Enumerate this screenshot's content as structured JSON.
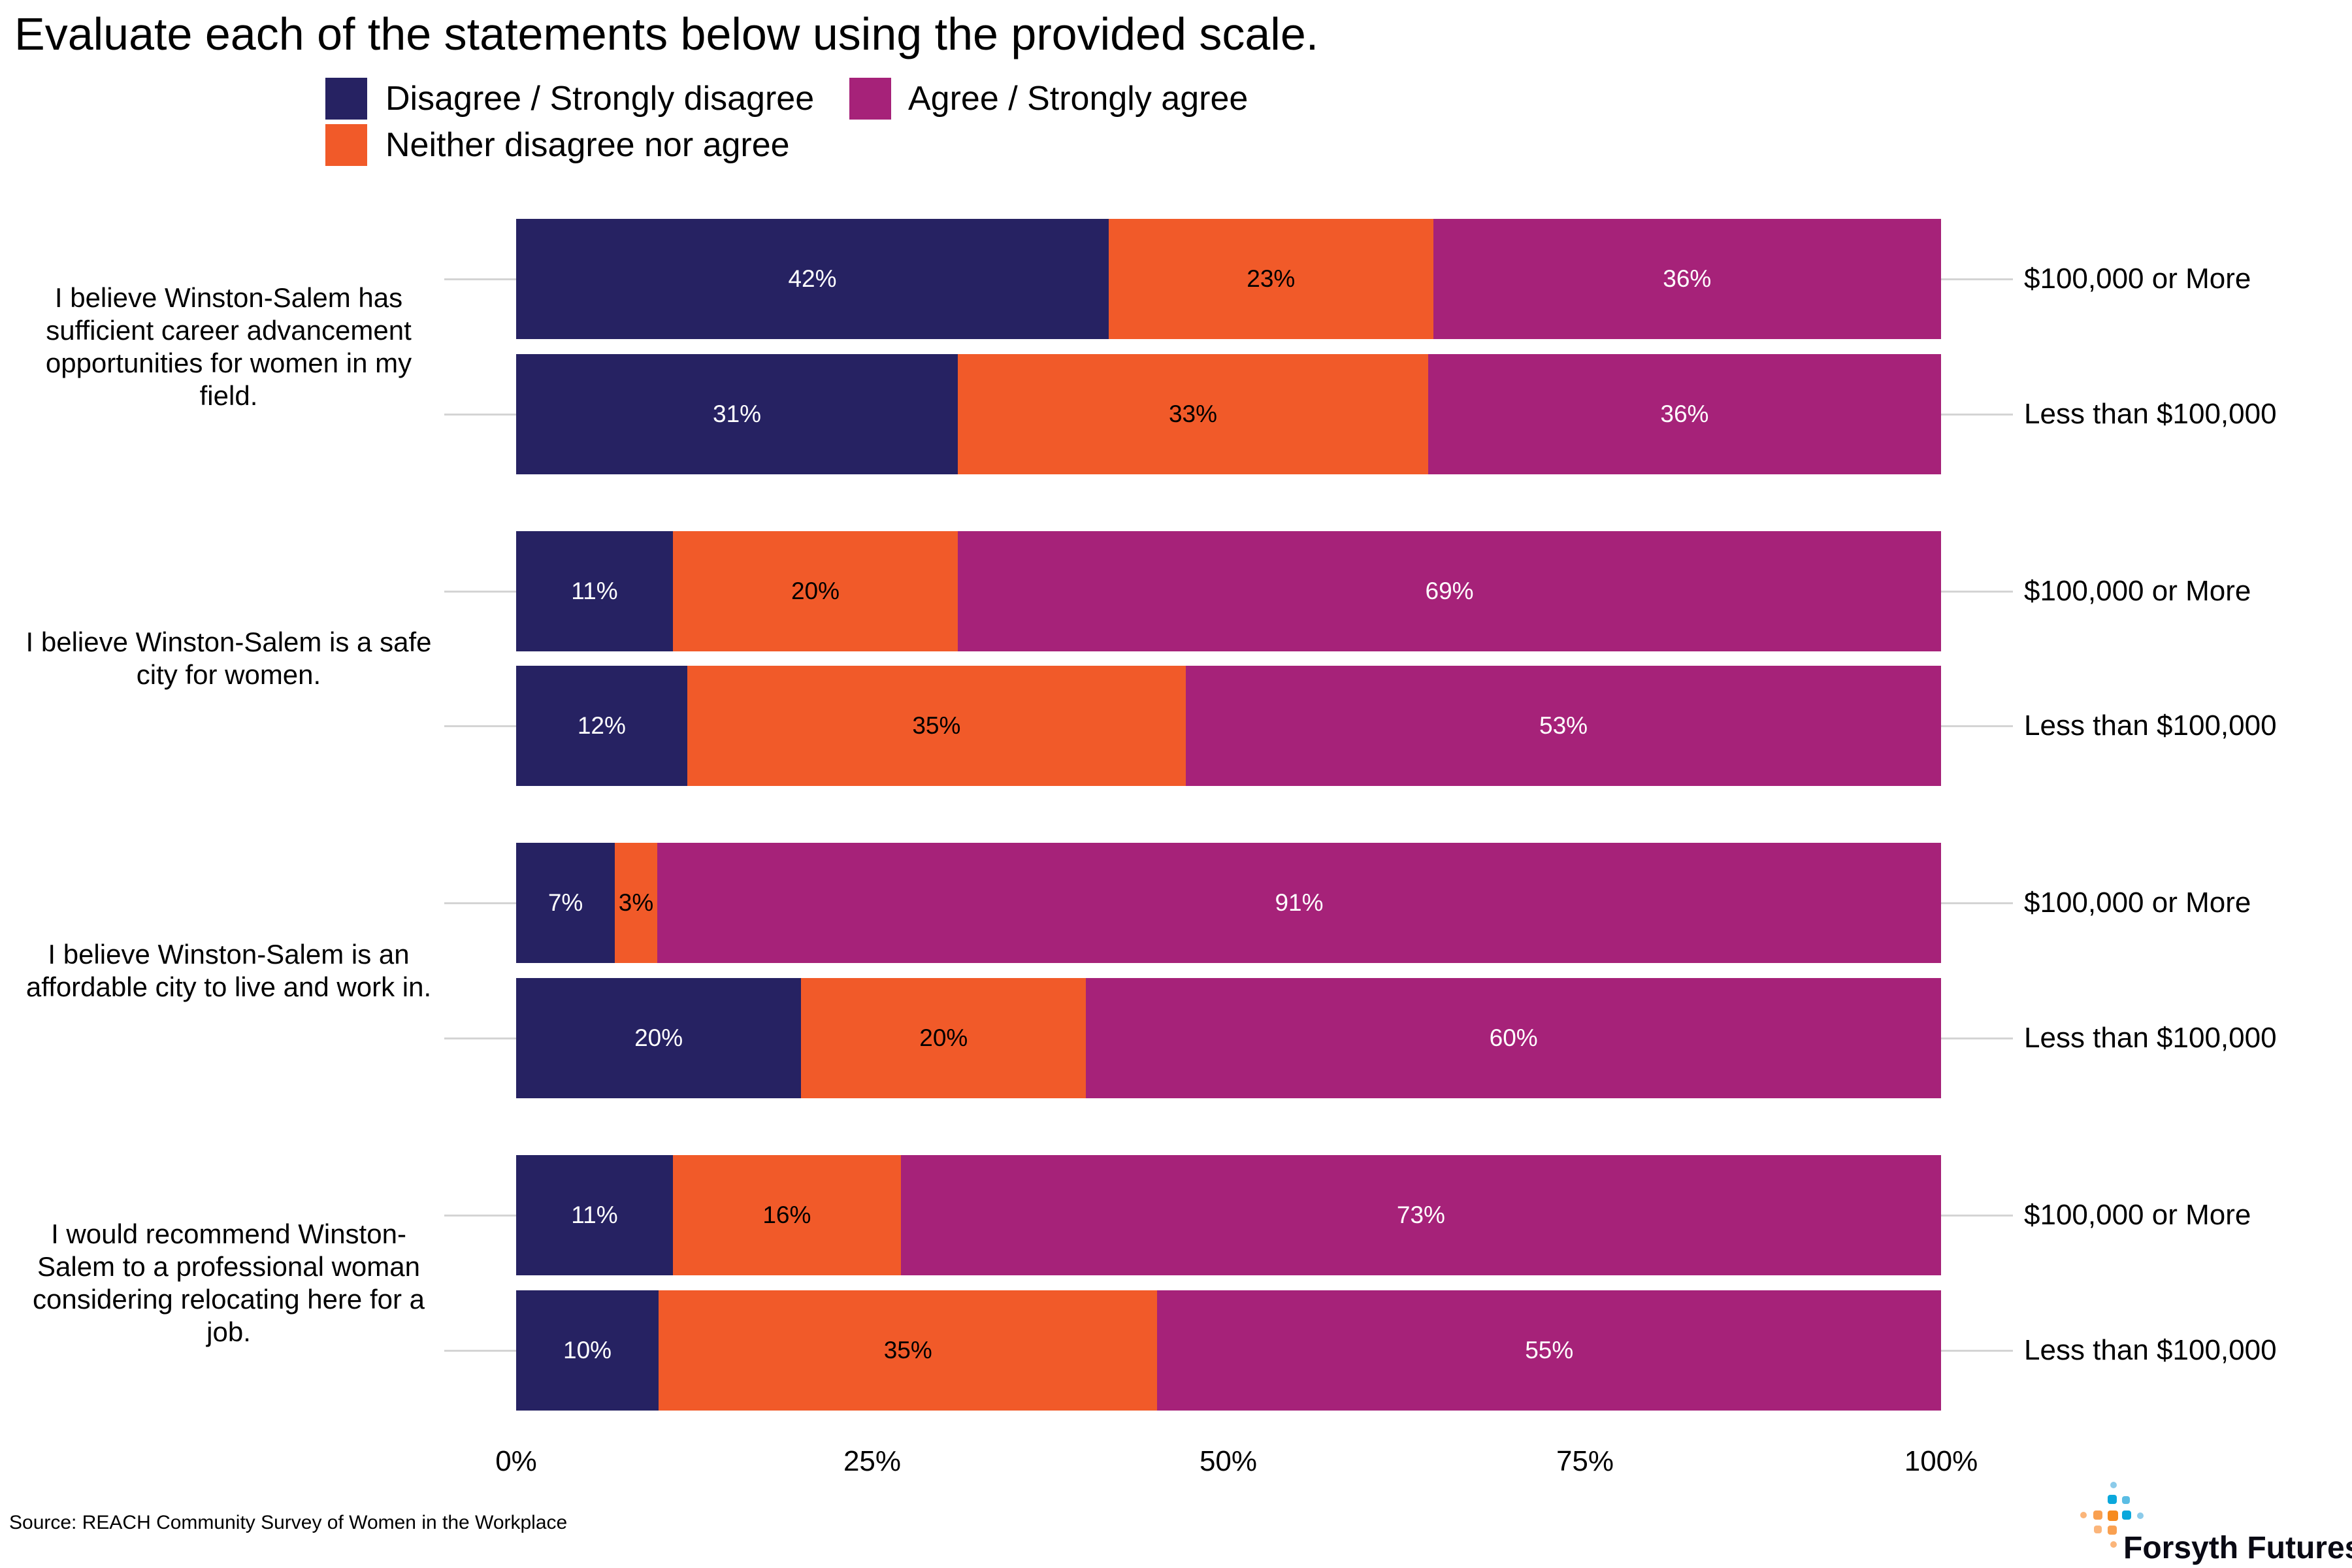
{
  "chart_data": {
    "type": "bar",
    "orientation": "horizontal",
    "stacked": true,
    "title": "Evaluate each of the statements below using the provided scale.",
    "legend": {
      "placement": "top",
      "entries": [
        "Disagree / Strongly disagree",
        "Agree / Strongly agree",
        "Neither disagree nor agree"
      ]
    },
    "series_order": [
      "Disagree / Strongly disagree",
      "Neither disagree nor agree",
      "Agree / Strongly agree"
    ],
    "colors": {
      "Disagree / Strongly disagree": "#262262",
      "Neither disagree nor agree": "#f15a29",
      "Agree / Strongly agree": "#a62279"
    },
    "label_colors": {
      "Disagree / Strongly disagree": "#ffffff",
      "Neither disagree nor agree": "#000000",
      "Agree / Strongly agree": "#ffffff"
    },
    "xlim": [
      0,
      100
    ],
    "xticks": [
      "0%",
      "25%",
      "50%",
      "75%",
      "100%"
    ],
    "grid": false,
    "groups": [
      {
        "question": "I believe Winston-Salem has sufficient career advancement opportunities for women in my field.",
        "rows": [
          {
            "income": "$100,000 or More",
            "values": [
              42,
              23,
              36
            ]
          },
          {
            "income": "Less than $100,000",
            "values": [
              31,
              33,
              36
            ]
          }
        ]
      },
      {
        "question": "I believe Winston-Salem is a safe city for women.",
        "rows": [
          {
            "income": "$100,000 or More",
            "values": [
              11,
              20,
              69
            ]
          },
          {
            "income": "Less than $100,000",
            "values": [
              12,
              35,
              53
            ]
          }
        ]
      },
      {
        "question": "I believe Winston-Salem is an affordable city to live and work in.",
        "rows": [
          {
            "income": "$100,000 or More",
            "values": [
              7,
              3,
              91
            ]
          },
          {
            "income": "Less than $100,000",
            "values": [
              20,
              20,
              60
            ]
          }
        ]
      },
      {
        "question": "I would recommend Winston-Salem to a professional woman considering relocating here for a job.",
        "rows": [
          {
            "income": "$100,000 or More",
            "values": [
              11,
              16,
              73
            ]
          },
          {
            "income": "Less than $100,000",
            "values": [
              10,
              35,
              55
            ]
          }
        ]
      }
    ]
  },
  "source": "Source: REACH Community Survey of Women in the Workplace",
  "logo": {
    "text": "Forsyth Futures"
  }
}
